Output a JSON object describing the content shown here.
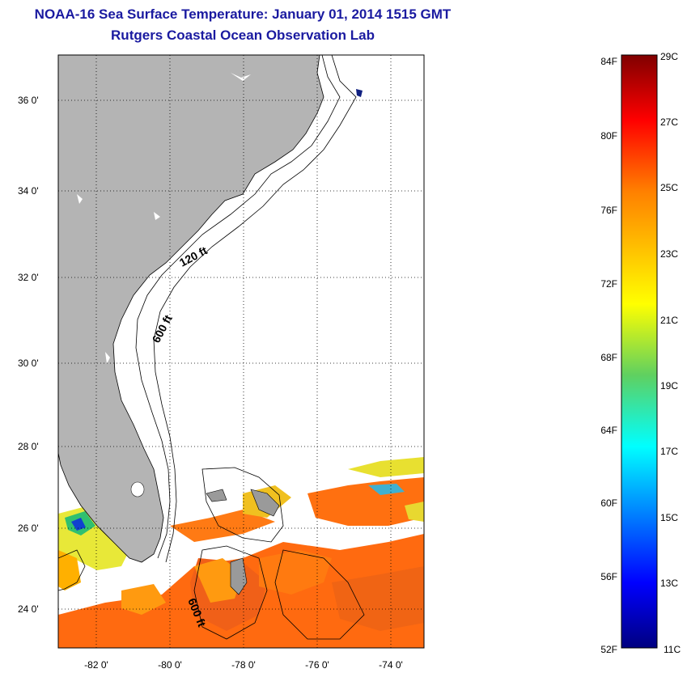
{
  "header": {
    "title": "NOAA-16 Sea Surface Temperature:  January 01, 2014 1515 GMT",
    "subtitle": "Rutgers Coastal Ocean Observation Lab"
  },
  "map": {
    "lat_labels": [
      "36 0'",
      "34 0'",
      "32 0'",
      "30 0'",
      "28 0'",
      "26 0'",
      "24 0'"
    ],
    "lon_labels": [
      "-82 0'",
      "-80 0'",
      "-78 0'",
      "-76 0'",
      "-74 0'"
    ],
    "depth_labels": [
      "120 ft",
      "600 ft",
      "600 ft"
    ],
    "colors": {
      "land": "#b4b4b4",
      "no_data": "#ffffff",
      "warm_water": "#ff6a10",
      "mid_water": "#ffb000",
      "cool_water": "#b0f020",
      "cold_water": "#1040d0"
    }
  },
  "colorbar": {
    "fahrenheit_labels": [
      "84F",
      "80F",
      "76F",
      "72F",
      "68F",
      "64F",
      "60F",
      "56F",
      "52F"
    ],
    "celsius_labels": [
      "29C",
      "27C",
      "25C",
      "23C",
      "21C",
      "19C",
      "17C",
      "15C",
      "13C",
      "11C"
    ],
    "range_f": [
      52,
      84
    ],
    "range_c": [
      11,
      29
    ]
  }
}
